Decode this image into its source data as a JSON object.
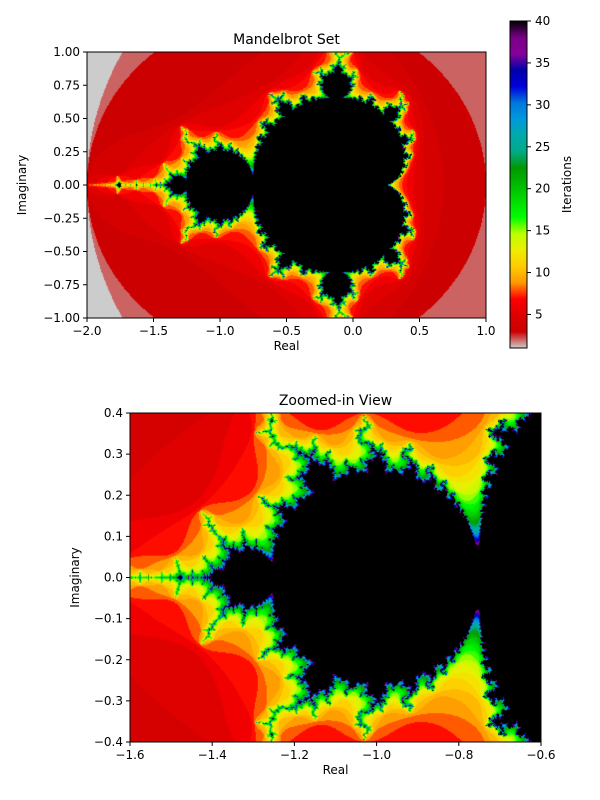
{
  "chart_data": [
    {
      "type": "heatmap",
      "title": "Mandelbrot Set",
      "xlabel": "Real",
      "ylabel": "Imaginary",
      "xlim": [
        -2.0,
        1.0
      ],
      "ylim": [
        -1.0,
        1.0
      ],
      "x_ticks": [
        -2.0,
        -1.5,
        -1.0,
        -0.5,
        0.0,
        0.5,
        1.0
      ],
      "x_tick_labels": [
        "−2.0",
        "−1.5",
        "−1.0",
        "−0.5",
        "0.0",
        "0.5",
        "1.0"
      ],
      "y_ticks": [
        -1.0,
        -0.75,
        -0.5,
        -0.25,
        0.0,
        0.25,
        0.5,
        0.75,
        1.0
      ],
      "y_tick_labels": [
        "−1.00",
        "−0.75",
        "−0.50",
        "−0.25",
        "0.00",
        "0.25",
        "0.50",
        "0.75",
        "1.00"
      ],
      "max_iterations": 40,
      "colormap": "nipy_spectral"
    },
    {
      "type": "heatmap",
      "title": "Zoomed-in View",
      "xlabel": "Real",
      "ylabel": "Imaginary",
      "xlim": [
        -1.6,
        -0.6
      ],
      "ylim": [
        -0.4,
        0.4
      ],
      "x_ticks": [
        -1.6,
        -1.4,
        -1.2,
        -1.0,
        -0.8,
        -0.6
      ],
      "x_tick_labels": [
        "−1.6",
        "−1.4",
        "−1.2",
        "−1.0",
        "−0.8",
        "−0.6"
      ],
      "y_ticks": [
        -0.4,
        -0.3,
        -0.2,
        -0.1,
        0.0,
        0.1,
        0.2,
        0.3,
        0.4
      ],
      "y_tick_labels": [
        "−0.4",
        "−0.3",
        "−0.2",
        "−0.1",
        "0.0",
        "0.1",
        "0.2",
        "0.3",
        "0.4"
      ],
      "max_iterations": 40,
      "colormap": "nipy_spectral"
    }
  ],
  "colorbar": {
    "label": "Iterations",
    "range": [
      1,
      40
    ],
    "ticks": [
      5,
      10,
      15,
      20,
      25,
      30,
      35,
      40
    ],
    "tick_labels": [
      "5",
      "10",
      "15",
      "20",
      "25",
      "30",
      "35",
      "40"
    ]
  }
}
